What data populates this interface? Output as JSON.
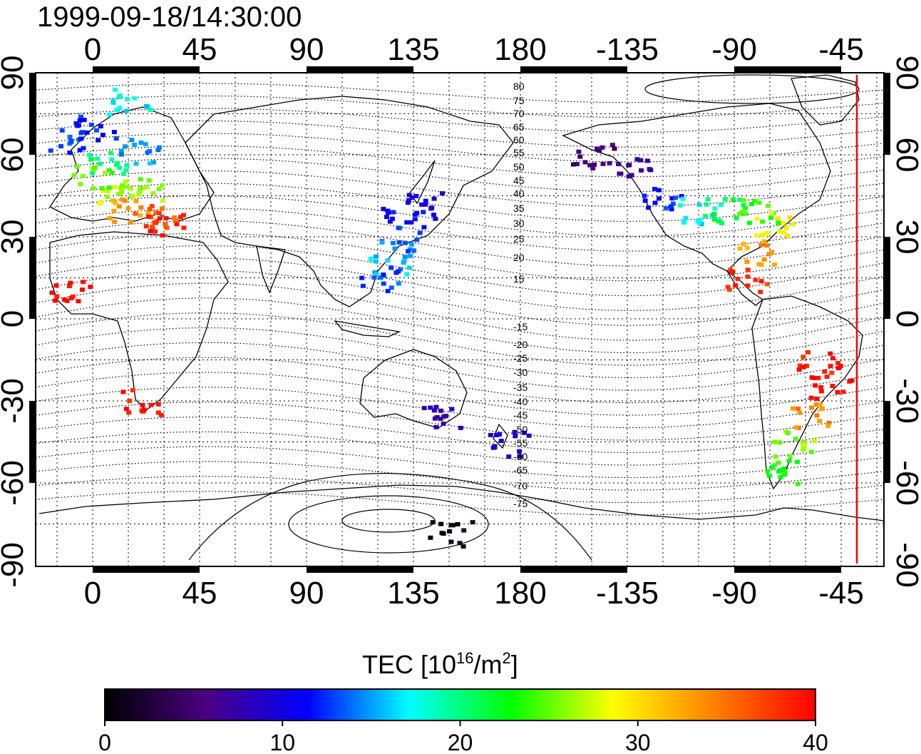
{
  "timestamp": "1999-09-18/14:30:00",
  "longitude_ticks": [
    "0",
    "45",
    "90",
    "135",
    "180",
    "-135",
    "-90",
    "-45"
  ],
  "latitude_ticks": [
    "90",
    "60",
    "30",
    "0",
    "-30",
    "-60",
    "-90"
  ],
  "magnetic_latitude_labels": [
    "80",
    "75",
    "70",
    "65",
    "60",
    "55",
    "50",
    "45",
    "40",
    "35",
    "30",
    "25",
    "20",
    "15",
    "-15",
    "-20",
    "-25",
    "-30",
    "-35",
    "-40",
    "-45",
    "-50",
    "-55",
    "-60",
    "-65",
    "-70",
    "-75"
  ],
  "colorbar": {
    "label_main": "TEC  [10",
    "label_sup1": "16",
    "label_mid": "/m",
    "label_sup2": "2",
    "label_end": "]",
    "ticks": [
      "0",
      "10",
      "20",
      "30",
      "40"
    ],
    "range": [
      0,
      40
    ],
    "colors": [
      "#000000",
      "#4b0082",
      "#0000ff",
      "#00ffff",
      "#00ff00",
      "#ffff00",
      "#ff8000",
      "#ff0000"
    ]
  },
  "terminator_color": "#ff0000",
  "tec_observations": [
    {
      "lon": 10,
      "lat": 47,
      "tec": 27
    },
    {
      "lon": 20,
      "lat": 48,
      "tec": 26
    },
    {
      "lon": 0,
      "lat": 52,
      "tec": 25
    },
    {
      "lon": 15,
      "lat": 40,
      "tec": 33
    },
    {
      "lon": 25,
      "lat": 38,
      "tec": 36
    },
    {
      "lon": 30,
      "lat": 35,
      "tec": 39
    },
    {
      "lon": 5,
      "lat": 58,
      "tec": 20
    },
    {
      "lon": 20,
      "lat": 62,
      "tec": 15
    },
    {
      "lon": 0,
      "lat": 70,
      "tec": 12
    },
    {
      "lon": -10,
      "lat": 65,
      "tec": 13
    },
    {
      "lon": 15,
      "lat": 80,
      "tec": 17
    },
    {
      "lon": 130,
      "lat": 38,
      "tec": 11
    },
    {
      "lon": 138,
      "lat": 42,
      "tec": 10
    },
    {
      "lon": 128,
      "lat": 30,
      "tec": 14
    },
    {
      "lon": 125,
      "lat": 20,
      "tec": 16
    },
    {
      "lon": 120,
      "lat": 15,
      "tec": 13
    },
    {
      "lon": 210,
      "lat": 60,
      "tec": 5
    },
    {
      "lon": 225,
      "lat": 55,
      "tec": 7
    },
    {
      "lon": 240,
      "lat": 45,
      "tec": 12
    },
    {
      "lon": 255,
      "lat": 40,
      "tec": 17
    },
    {
      "lon": 265,
      "lat": 40,
      "tec": 21
    },
    {
      "lon": 280,
      "lat": 40,
      "tec": 24
    },
    {
      "lon": 285,
      "lat": 35,
      "tec": 29
    },
    {
      "lon": 280,
      "lat": 25,
      "tec": 33
    },
    {
      "lon": 275,
      "lat": 15,
      "tec": 38
    },
    {
      "lon": 305,
      "lat": -15,
      "tec": 39
    },
    {
      "lon": 310,
      "lat": -25,
      "tec": 40
    },
    {
      "lon": 300,
      "lat": -35,
      "tec": 34
    },
    {
      "lon": 295,
      "lat": -45,
      "tec": 26
    },
    {
      "lon": 290,
      "lat": -55,
      "tec": 23
    },
    {
      "lon": 145,
      "lat": -35,
      "tec": 8
    },
    {
      "lon": 175,
      "lat": -45,
      "tec": 9
    },
    {
      "lon": 150,
      "lat": -78,
      "tec": 1
    },
    {
      "lon": 20,
      "lat": -30,
      "tec": 39
    },
    {
      "lon": -10,
      "lat": 10,
      "tec": 40
    }
  ]
}
